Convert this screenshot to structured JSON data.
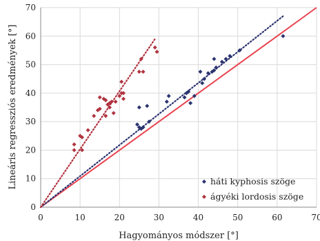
{
  "chart_data": {
    "type": "scatter",
    "title": "",
    "xlabel": "Hagyományos módszer [°]",
    "ylabel": "Lineáris regressziós eredmények [°]",
    "xlim": [
      0,
      70
    ],
    "ylim": [
      0,
      70
    ],
    "xticks": [
      0,
      10,
      20,
      30,
      40,
      50,
      60,
      70
    ],
    "yticks": [
      0,
      10,
      20,
      30,
      40,
      50,
      60,
      70
    ],
    "grid": true,
    "legend_position": "bottom-right",
    "identity_line": {
      "from": [
        0,
        0
      ],
      "to": [
        70,
        70
      ],
      "color": "#e8434f"
    },
    "series": [
      {
        "name": "háti kyphosis szöge",
        "color": "#2b3470",
        "trendline": {
          "from": [
            0,
            0
          ],
          "to": [
            61.5,
            67
          ]
        },
        "points": [
          [
            24.5,
            29
          ],
          [
            25,
            28
          ],
          [
            25.5,
            27.5
          ],
          [
            25,
            35
          ],
          [
            26,
            28
          ],
          [
            27,
            35.5
          ],
          [
            27.5,
            30
          ],
          [
            32,
            37
          ],
          [
            32.5,
            39
          ],
          [
            36.5,
            38.5
          ],
          [
            37,
            40
          ],
          [
            37.5,
            40.5
          ],
          [
            38,
            36.5
          ],
          [
            39,
            39
          ],
          [
            40.5,
            47.5
          ],
          [
            41,
            43.5
          ],
          [
            41.5,
            45
          ],
          [
            42.5,
            47
          ],
          [
            43.5,
            47.5
          ],
          [
            44,
            48
          ],
          [
            44.5,
            49
          ],
          [
            44,
            52
          ],
          [
            46,
            51
          ],
          [
            47,
            52
          ],
          [
            48,
            53
          ],
          [
            50.5,
            55
          ],
          [
            61.5,
            60
          ]
        ]
      },
      {
        "name": "ágyéki lordosis szöge",
        "color": "#b03440",
        "trendline": {
          "from": [
            0,
            0
          ],
          "to": [
            29,
            59
          ]
        },
        "points": [
          [
            8.5,
            20
          ],
          [
            8.5,
            22
          ],
          [
            10,
            25
          ],
          [
            10.5,
            20
          ],
          [
            10.5,
            24.5
          ],
          [
            12,
            27
          ],
          [
            13.5,
            32
          ],
          [
            14.5,
            34
          ],
          [
            15,
            34.5
          ],
          [
            15,
            38.5
          ],
          [
            16,
            38
          ],
          [
            16.5,
            37.5
          ],
          [
            16.5,
            32
          ],
          [
            17,
            36
          ],
          [
            17.5,
            35
          ],
          [
            17.5,
            36.5
          ],
          [
            18,
            37
          ],
          [
            18.5,
            33
          ],
          [
            19,
            37
          ],
          [
            20,
            39
          ],
          [
            20.5,
            44
          ],
          [
            20.5,
            40
          ],
          [
            21,
            40
          ],
          [
            21,
            38
          ],
          [
            25,
            47.5
          ],
          [
            25.5,
            52
          ],
          [
            26,
            47.5
          ],
          [
            29,
            56
          ],
          [
            29.5,
            54.5
          ]
        ]
      }
    ]
  }
}
